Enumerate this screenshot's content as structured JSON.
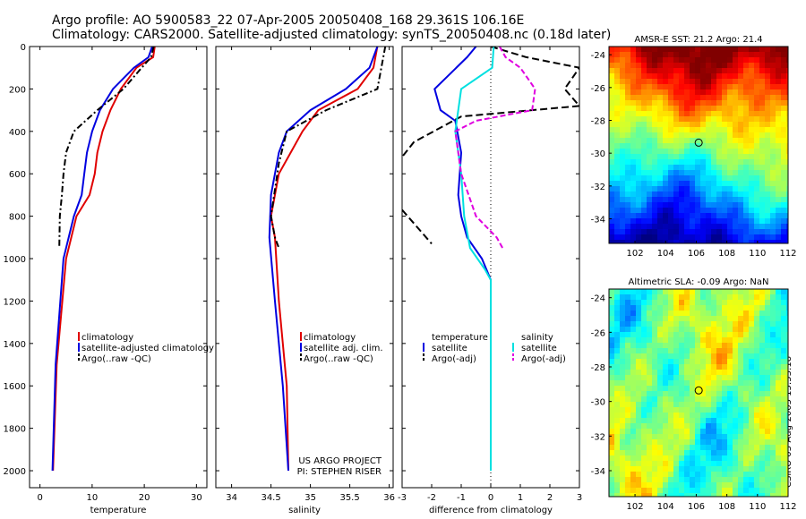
{
  "header": {
    "line1": "Argo profile: AO 5900583_22 07-Apr-2005 20050408_168 29.361S 106.16E",
    "line2": "Climatology: CARS2000. Satellite-adjusted climatology: synTS_20050408.nc (0.18d later)"
  },
  "stamp": "CSIRO 03-Aug-2005 15:53:18",
  "colors": {
    "climatology": "#e00000",
    "satellite": "#0000e0",
    "argo": "#000000",
    "salinity_satellite": "#00e0e0",
    "salinity_argo": "#e000e0"
  },
  "chart_data": [
    {
      "type": "line",
      "id": "temperature",
      "xlabel": "temperature",
      "ylabel": "",
      "xlim": [
        -2,
        32
      ],
      "ylim": [
        2080,
        0
      ],
      "xticks": [
        0,
        10,
        20,
        30
      ],
      "yticks": [
        0,
        200,
        400,
        600,
        800,
        1000,
        1200,
        1400,
        1600,
        1800,
        2000
      ],
      "legend": [
        "climatology",
        "satellite-adjusted climatology",
        "Argo(..raw -QC)"
      ],
      "series": [
        {
          "name": "climatology",
          "color": "#e00000",
          "x": [
            22.0,
            21.7,
            18.5,
            15.5,
            13.5,
            12.0,
            11.0,
            10.5,
            9.5,
            7.0,
            5.0,
            3.2,
            2.5
          ],
          "y": [
            0,
            50,
            100,
            200,
            300,
            400,
            500,
            600,
            700,
            800,
            1000,
            1500,
            2000
          ]
        },
        {
          "name": "satellite-adjusted climatology",
          "color": "#0000e0",
          "x": [
            21.5,
            20.8,
            18.0,
            14.0,
            11.5,
            10.0,
            9.0,
            8.5,
            8.0,
            6.5,
            4.5,
            3.0,
            2.4
          ],
          "y": [
            0,
            50,
            100,
            200,
            300,
            400,
            500,
            600,
            700,
            800,
            1000,
            1500,
            2000
          ]
        },
        {
          "name": "Argo(..raw -QC)",
          "color": "#000000",
          "x": [
            21.8,
            21.3,
            19.5,
            16.0,
            11.0,
            6.5,
            5.0,
            4.5,
            4.2,
            3.8,
            3.7
          ],
          "y": [
            0,
            50,
            100,
            200,
            300,
            400,
            500,
            600,
            700,
            800,
            950
          ]
        }
      ]
    },
    {
      "type": "line",
      "id": "salinity",
      "xlabel": "salinity",
      "ylabel": "",
      "xlim": [
        33.8,
        36.05
      ],
      "ylim": [
        2080,
        0
      ],
      "xticks": [
        34,
        34.5,
        35,
        35.5,
        36
      ],
      "legend": [
        "climatology",
        "satellite adj. clim.",
        "Argo(..raw -QC)"
      ],
      "annotations": [
        "US ARGO PROJECT",
        "PI: STEPHEN RISER"
      ],
      "series": [
        {
          "name": "climatology",
          "color": "#e00000",
          "x": [
            35.85,
            35.8,
            35.6,
            35.1,
            34.9,
            34.75,
            34.6,
            34.5,
            34.55,
            34.6,
            34.7,
            34.72
          ],
          "y": [
            0,
            100,
            200,
            300,
            400,
            500,
            600,
            800,
            900,
            1200,
            1600,
            2000
          ]
        },
        {
          "name": "satellite adj. clim.",
          "color": "#0000e0",
          "x": [
            35.85,
            35.75,
            35.45,
            35.0,
            34.7,
            34.6,
            34.5,
            34.48,
            34.55,
            34.65,
            34.72
          ],
          "y": [
            0,
            100,
            200,
            300,
            400,
            500,
            700,
            900,
            1200,
            1600,
            2000
          ]
        },
        {
          "name": "Argo(..raw -QC)",
          "color": "#000000",
          "x": [
            35.95,
            35.9,
            35.85,
            35.2,
            34.7,
            34.6,
            34.5,
            34.55,
            34.6
          ],
          "y": [
            0,
            100,
            200,
            300,
            400,
            550,
            800,
            900,
            950
          ]
        }
      ]
    },
    {
      "type": "line",
      "id": "difference",
      "xlabel": "difference from climatology",
      "ylabel": "",
      "xlim": [
        -3,
        3
      ],
      "ylim": [
        2080,
        0
      ],
      "xticks": [
        -3,
        -2,
        -1,
        0,
        1,
        2,
        3
      ],
      "legend_left_title": "temperature",
      "legend_left": [
        "satellite",
        "Argo(-adj)"
      ],
      "legend_right_title": "salinity",
      "legend_right": [
        "satellite",
        "Argo(-adj)"
      ],
      "series": [
        {
          "name": "temperature satellite",
          "color": "#0000e0",
          "x": [
            -0.5,
            -0.8,
            -1.9,
            -1.7,
            -1.2,
            -1.0,
            -1.1,
            -1.0,
            -0.8,
            -0.3,
            0,
            0
          ],
          "y": [
            0,
            50,
            200,
            300,
            350,
            500,
            700,
            800,
            900,
            1000,
            1100,
            2000
          ]
        },
        {
          "name": "temperature Argo(-adj)",
          "color": "#000000",
          "x": [
            0,
            1.2,
            3.0,
            2.5,
            3.0,
            -1.0,
            -2.6,
            -3.0
          ],
          "y": [
            0,
            50,
            100,
            200,
            280,
            330,
            450,
            520
          ],
          "split": true,
          "x2": [
            -3.0,
            -2.0
          ],
          "y2": [
            770,
            930
          ]
        },
        {
          "name": "salinity satellite",
          "color": "#00e0e0",
          "x": [
            0.1,
            0.05,
            -1.0,
            -1.2,
            -1.0,
            -0.9,
            -0.7,
            -0.2,
            0,
            0
          ],
          "y": [
            0,
            100,
            200,
            400,
            600,
            800,
            950,
            1050,
            1100,
            2000
          ]
        },
        {
          "name": "salinity Argo(-adj)",
          "color": "#e000e0",
          "x": [
            0.3,
            0.5,
            1.0,
            1.5,
            1.4,
            -0.5,
            -1.2,
            -1.0,
            -0.5,
            0.2,
            0.4
          ],
          "y": [
            0,
            50,
            100,
            200,
            300,
            350,
            400,
            600,
            800,
            900,
            950
          ]
        }
      ]
    },
    {
      "type": "heatmap",
      "id": "sst-map",
      "title": "AMSR-E SST: 21.2 Argo: 21.4",
      "xlim": [
        100.3,
        112
      ],
      "ylim": [
        -35.5,
        -23.5
      ],
      "xticks": [
        102,
        104,
        106,
        108,
        110,
        112
      ],
      "yticks": [
        -24,
        -26,
        -28,
        -30,
        -32,
        -34
      ],
      "marker": {
        "lon": 106.16,
        "lat": -29.36
      }
    },
    {
      "type": "heatmap",
      "id": "sla-map",
      "title": "Altimetric SLA: -0.09 Argo: NaN",
      "xlim": [
        100.3,
        112
      ],
      "ylim": [
        -35.5,
        -23.5
      ],
      "xticks": [
        102,
        104,
        106,
        108,
        110,
        112
      ],
      "yticks": [
        -24,
        -26,
        -28,
        -30,
        -32,
        -34
      ],
      "marker": {
        "lon": 106.16,
        "lat": -29.36
      }
    }
  ]
}
